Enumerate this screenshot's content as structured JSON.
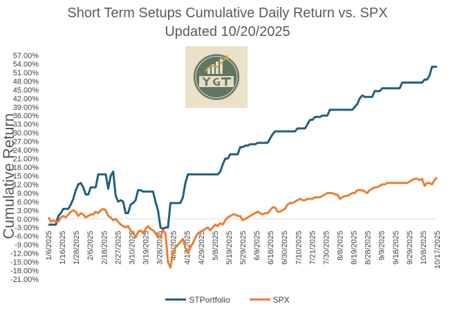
{
  "chart_data": {
    "type": "line",
    "title": "Short Term Setups Cumulative Daily Return vs. SPX",
    "subtitle": "Updated 10/20/2025",
    "xlabel": "",
    "ylabel": "Cumulative Return",
    "ylim": [
      -21,
      57
    ],
    "y_ticks": [
      "57.00%",
      "54.00%",
      "51.00%",
      "48.00%",
      "45.00%",
      "42.00%",
      "39.00%",
      "36.00%",
      "33.00%",
      "30.00%",
      "27.00%",
      "24.00%",
      "21.00%",
      "18.00%",
      "15.00%",
      "12.00%",
      "9.00%",
      "6.00%",
      "3.00%",
      "0.00%",
      "-3.00%",
      "-6.00%",
      "-9.00%",
      "-12.00%",
      "-15.00%",
      "-18.00%",
      "-21.00%"
    ],
    "x_ticks": [
      "1/6/2025",
      "1/16/2025",
      "1/28/2025",
      "2/6/2025",
      "2/18/2025",
      "2/27/2025",
      "3/10/2025",
      "3/19/2025",
      "3/28/2025",
      "4/8/2025",
      "4/17/2025",
      "4/29/2025",
      "5/8/2025",
      "5/19/2025",
      "5/29/2025",
      "6/9/2025",
      "6/18/2025",
      "6/30/2025",
      "7/10/2025",
      "7/21/2025",
      "7/30/2025",
      "8/8/2025",
      "8/19/2025",
      "8/28/2025",
      "9/9/2025",
      "9/18/2025",
      "9/29/2025",
      "10/8/2025",
      "10/17/2025"
    ],
    "grid": false,
    "legend": "bottom",
    "series": [
      {
        "name": "STPortfolio",
        "color": "#1f5f7f",
        "points": [
          [
            0,
            -2
          ],
          [
            2,
            -2
          ],
          [
            3,
            -2
          ],
          [
            4,
            1
          ],
          [
            5,
            2
          ],
          [
            6,
            3.5
          ],
          [
            7,
            3.5
          ],
          [
            8,
            3.5
          ],
          [
            9,
            5
          ],
          [
            10,
            7
          ],
          [
            11,
            10
          ],
          [
            12,
            12
          ],
          [
            13,
            12.5
          ],
          [
            14,
            11
          ],
          [
            15,
            8.5
          ],
          [
            16,
            8.5
          ],
          [
            17,
            11
          ],
          [
            18,
            11
          ],
          [
            19,
            11
          ],
          [
            20,
            15.5
          ],
          [
            21,
            15.5
          ],
          [
            22,
            15.5
          ],
          [
            23,
            15.5
          ],
          [
            24,
            10.5
          ],
          [
            25,
            15
          ],
          [
            26,
            16.5
          ],
          [
            27,
            8
          ],
          [
            28,
            6
          ],
          [
            29,
            6.5
          ],
          [
            30,
            6
          ],
          [
            31,
            2
          ],
          [
            32,
            2
          ],
          [
            33,
            5
          ],
          [
            34,
            5.5
          ],
          [
            35,
            6.5
          ],
          [
            36,
            10
          ],
          [
            37,
            10
          ],
          [
            38,
            9.5
          ],
          [
            39,
            9.5
          ],
          [
            40,
            9.5
          ],
          [
            41,
            9.5
          ],
          [
            42,
            9.5
          ],
          [
            43,
            6
          ],
          [
            44,
            3
          ],
          [
            45,
            -3
          ],
          [
            46,
            -3.5
          ],
          [
            47,
            -3
          ],
          [
            48,
            -3
          ],
          [
            49,
            5.5
          ],
          [
            50,
            5.5
          ],
          [
            51,
            5.5
          ],
          [
            52,
            5.5
          ],
          [
            53,
            5.5
          ],
          [
            54,
            7.5
          ],
          [
            55,
            12.5
          ],
          [
            56,
            15.5
          ],
          [
            57,
            15.5
          ],
          [
            58,
            15.5
          ],
          [
            59,
            15.5
          ],
          [
            60,
            15.5
          ],
          [
            61,
            15.5
          ],
          [
            62,
            15.5
          ],
          [
            63,
            15.5
          ],
          [
            64,
            15.5
          ],
          [
            65,
            15.5
          ],
          [
            66,
            15.5
          ],
          [
            67,
            15.5
          ],
          [
            68,
            15.5
          ],
          [
            69,
            16.5
          ],
          [
            70,
            19
          ],
          [
            71,
            21
          ],
          [
            72,
            21
          ],
          [
            73,
            22.5
          ],
          [
            74,
            22.5
          ],
          [
            75,
            22.5
          ],
          [
            76,
            22.5
          ],
          [
            77,
            25
          ],
          [
            78,
            25
          ],
          [
            79,
            25.5
          ],
          [
            80,
            25.5
          ],
          [
            81,
            26
          ],
          [
            82,
            26
          ],
          [
            83,
            26
          ],
          [
            84,
            26.5
          ],
          [
            85,
            26.5
          ],
          [
            86,
            26.5
          ],
          [
            87,
            26.5
          ],
          [
            88,
            26.5
          ],
          [
            89,
            28
          ],
          [
            90,
            29.5
          ],
          [
            91,
            30.5
          ],
          [
            92,
            30.5
          ],
          [
            93,
            30.5
          ],
          [
            94,
            30.5
          ],
          [
            95,
            30.5
          ],
          [
            96,
            30.5
          ],
          [
            97,
            30.5
          ],
          [
            98,
            30.5
          ],
          [
            99,
            30.5
          ],
          [
            100,
            31.5
          ],
          [
            101,
            31.5
          ],
          [
            102,
            31.5
          ],
          [
            103,
            31.5
          ],
          [
            104,
            33
          ],
          [
            105,
            34.5
          ],
          [
            106,
            34.5
          ],
          [
            107,
            35.5
          ],
          [
            108,
            35.5
          ],
          [
            109,
            35.5
          ],
          [
            110,
            36
          ],
          [
            111,
            36
          ],
          [
            112,
            36
          ],
          [
            113,
            38
          ],
          [
            114,
            38
          ],
          [
            115,
            38
          ],
          [
            116,
            38
          ],
          [
            117,
            38
          ],
          [
            118,
            38
          ],
          [
            119,
            38
          ],
          [
            120,
            38
          ],
          [
            121,
            38
          ],
          [
            122,
            38
          ],
          [
            123,
            39
          ],
          [
            124,
            40
          ],
          [
            125,
            42
          ],
          [
            126,
            43
          ],
          [
            127,
            42.5
          ],
          [
            128,
            42.5
          ],
          [
            129,
            42.5
          ],
          [
            130,
            42.5
          ],
          [
            131,
            44.5
          ],
          [
            132,
            44.5
          ],
          [
            133,
            44.5
          ],
          [
            134,
            45.5
          ],
          [
            135,
            45.5
          ],
          [
            136,
            45.5
          ],
          [
            137,
            45.5
          ],
          [
            138,
            45.5
          ],
          [
            139,
            45.5
          ],
          [
            140,
            45.5
          ],
          [
            141,
            45.5
          ],
          [
            142,
            47.5
          ],
          [
            143,
            47.5
          ],
          [
            144,
            47.5
          ],
          [
            145,
            47.5
          ],
          [
            146,
            47.5
          ],
          [
            147,
            47.5
          ],
          [
            148,
            47.5
          ],
          [
            149,
            47.5
          ],
          [
            150,
            47.5
          ],
          [
            151,
            48.5
          ],
          [
            152,
            48.5
          ],
          [
            153,
            50
          ],
          [
            154,
            53
          ],
          [
            155,
            53
          ],
          [
            156,
            53
          ]
        ]
      },
      {
        "name": "SPX",
        "color": "#ed7d31",
        "points": [
          [
            0,
            0.5
          ],
          [
            1,
            -1
          ],
          [
            2,
            -0.5
          ],
          [
            3,
            -1
          ],
          [
            4,
            -1
          ],
          [
            5,
            0.5
          ],
          [
            6,
            1
          ],
          [
            7,
            0.5
          ],
          [
            8,
            1.5
          ],
          [
            9,
            2.5
          ],
          [
            10,
            3
          ],
          [
            11,
            2.5
          ],
          [
            12,
            1
          ],
          [
            13,
            2
          ],
          [
            14,
            1.5
          ],
          [
            15,
            0.5
          ],
          [
            16,
            1
          ],
          [
            17,
            1.5
          ],
          [
            18,
            1.5
          ],
          [
            19,
            2.5
          ],
          [
            20,
            2
          ],
          [
            21,
            3
          ],
          [
            22,
            3.5
          ],
          [
            23,
            3
          ],
          [
            24,
            1
          ],
          [
            25,
            0.5
          ],
          [
            26,
            -0.5
          ],
          [
            27,
            0
          ],
          [
            28,
            -1
          ],
          [
            29,
            -2
          ],
          [
            30,
            -2.5
          ],
          [
            31,
            -3
          ],
          [
            32,
            -2.5
          ],
          [
            33,
            -4
          ],
          [
            34,
            -5
          ],
          [
            35,
            -6.5
          ],
          [
            36,
            -4.5
          ],
          [
            37,
            -4
          ],
          [
            38,
            -5
          ],
          [
            39,
            -3.5
          ],
          [
            40,
            -2.5
          ],
          [
            41,
            -3.5
          ],
          [
            42,
            -4
          ],
          [
            43,
            -5
          ],
          [
            44,
            -6.5
          ],
          [
            45,
            -6
          ],
          [
            46,
            -4
          ],
          [
            47,
            -5
          ],
          [
            48,
            -15
          ],
          [
            49,
            -17
          ],
          [
            50,
            -12
          ],
          [
            51,
            -10
          ],
          [
            52,
            -9
          ],
          [
            53,
            -8
          ],
          [
            54,
            -7
          ],
          [
            55,
            -10
          ],
          [
            56,
            -12
          ],
          [
            57,
            -10
          ],
          [
            58,
            -8.5
          ],
          [
            59,
            -6.5
          ],
          [
            60,
            -5
          ],
          [
            61,
            -4.5
          ],
          [
            62,
            -4
          ],
          [
            63,
            -3.5
          ],
          [
            64,
            -3
          ],
          [
            65,
            -4
          ],
          [
            66,
            -3
          ],
          [
            67,
            -2
          ],
          [
            68,
            -2.5
          ],
          [
            69,
            -1.5
          ],
          [
            70,
            -2
          ],
          [
            71,
            -0.5
          ],
          [
            72,
            0.5
          ],
          [
            73,
            1
          ],
          [
            74,
            1.5
          ],
          [
            75,
            1.5
          ],
          [
            76,
            1
          ],
          [
            77,
            1
          ],
          [
            78,
            -0.5
          ],
          [
            79,
            0
          ],
          [
            80,
            0.5
          ],
          [
            81,
            1
          ],
          [
            82,
            1.5
          ],
          [
            83,
            2
          ],
          [
            84,
            2.5
          ],
          [
            85,
            2
          ],
          [
            86,
            1.5
          ],
          [
            87,
            2
          ],
          [
            88,
            2
          ],
          [
            89,
            3
          ],
          [
            90,
            4
          ],
          [
            91,
            4
          ],
          [
            92,
            2.5
          ],
          [
            93,
            2.5
          ],
          [
            94,
            3
          ],
          [
            95,
            3.5
          ],
          [
            96,
            5
          ],
          [
            97,
            5.5
          ],
          [
            98,
            5.5
          ],
          [
            99,
            6
          ],
          [
            100,
            6.5
          ],
          [
            101,
            7
          ],
          [
            102,
            6.5
          ],
          [
            103,
            6.5
          ],
          [
            104,
            7
          ],
          [
            105,
            7
          ],
          [
            106,
            7
          ],
          [
            107,
            7.5
          ],
          [
            108,
            7.5
          ],
          [
            109,
            7.5
          ],
          [
            110,
            8
          ],
          [
            111,
            8.5
          ],
          [
            112,
            9
          ],
          [
            113,
            9
          ],
          [
            114,
            9
          ],
          [
            115,
            8.5
          ],
          [
            116,
            8.5
          ],
          [
            117,
            7
          ],
          [
            118,
            7.5
          ],
          [
            119,
            8
          ],
          [
            120,
            8
          ],
          [
            121,
            8.5
          ],
          [
            122,
            9
          ],
          [
            123,
            9
          ],
          [
            124,
            10
          ],
          [
            125,
            10
          ],
          [
            126,
            10
          ],
          [
            127,
            9.5
          ],
          [
            128,
            9
          ],
          [
            129,
            10
          ],
          [
            130,
            10.5
          ],
          [
            131,
            11
          ],
          [
            132,
            11
          ],
          [
            133,
            11.5
          ],
          [
            134,
            12
          ],
          [
            135,
            12
          ],
          [
            136,
            12.5
          ],
          [
            137,
            12.5
          ],
          [
            138,
            12.5
          ],
          [
            139,
            12.5
          ],
          [
            140,
            12.5
          ],
          [
            141,
            12.5
          ],
          [
            142,
            12.5
          ],
          [
            143,
            12.5
          ],
          [
            144,
            12.5
          ],
          [
            145,
            13
          ],
          [
            146,
            13.5
          ],
          [
            147,
            14
          ],
          [
            148,
            14
          ],
          [
            149,
            13.5
          ],
          [
            150,
            14
          ],
          [
            151,
            11.5
          ],
          [
            152,
            12.5
          ],
          [
            153,
            12.5
          ],
          [
            154,
            12
          ],
          [
            155,
            13.5
          ],
          [
            156,
            14.5
          ]
        ]
      }
    ]
  }
}
